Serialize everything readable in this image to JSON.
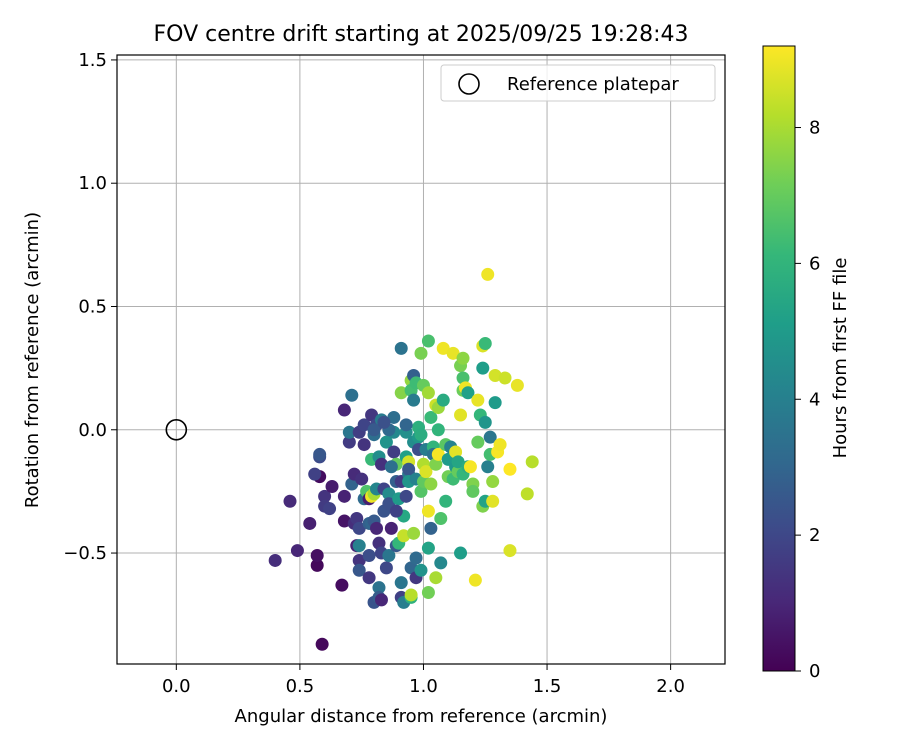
{
  "chart_data": {
    "type": "scatter",
    "title": "FOV centre drift starting at 2025/09/25 19:28:43",
    "xlabel": "Angular distance from reference (arcmin)",
    "ylabel": "Rotation from reference (arcmin)",
    "xlim": [
      -0.24,
      2.22
    ],
    "ylim": [
      -0.95,
      1.52
    ],
    "xticks": [
      0.0,
      0.5,
      1.0,
      1.5,
      2.0
    ],
    "xtick_labels": [
      "0.0",
      "0.5",
      "1.0",
      "1.5",
      "2.0"
    ],
    "yticks": [
      -0.5,
      0.0,
      0.5,
      1.0,
      1.5
    ],
    "ytick_labels": [
      "−0.5",
      "0.0",
      "0.5",
      "1.0",
      "1.5"
    ],
    "grid": true,
    "legend": {
      "position": "top-right",
      "entries": [
        "Reference platepar"
      ]
    },
    "reference_point": {
      "label": "Reference platepar",
      "x": 0.0,
      "y": 0.0
    },
    "colorbar": {
      "label": "Hours from first FF file",
      "range": [
        0,
        9.2
      ],
      "ticks": [
        0,
        2,
        4,
        6,
        8
      ],
      "tick_labels": [
        "0",
        "2",
        "4",
        "6",
        "8"
      ],
      "colormap_stops": [
        "#440154",
        "#482878",
        "#3e4989",
        "#31688e",
        "#26828e",
        "#1f9e89",
        "#35b779",
        "#6ece58",
        "#b5de2b",
        "#fde725"
      ]
    },
    "points": [
      {
        "x": 0.59,
        "y": -0.87,
        "h": 0.2
      },
      {
        "x": 0.67,
        "y": -0.63,
        "h": 0.3
      },
      {
        "x": 0.57,
        "y": -0.55,
        "h": 0.2
      },
      {
        "x": 0.57,
        "y": -0.51,
        "h": 0.4
      },
      {
        "x": 0.4,
        "y": -0.53,
        "h": 1.2
      },
      {
        "x": 0.49,
        "y": -0.49,
        "h": 1.0
      },
      {
        "x": 0.54,
        "y": -0.38,
        "h": 0.8
      },
      {
        "x": 0.46,
        "y": -0.29,
        "h": 1.1
      },
      {
        "x": 0.58,
        "y": -0.19,
        "h": 0.3
      },
      {
        "x": 0.56,
        "y": -0.18,
        "h": 1.8
      },
      {
        "x": 0.58,
        "y": -0.11,
        "h": 2.1
      },
      {
        "x": 0.58,
        "y": -0.1,
        "h": 2.5
      },
      {
        "x": 0.6,
        "y": -0.27,
        "h": 1.4
      },
      {
        "x": 0.6,
        "y": -0.31,
        "h": 1.6
      },
      {
        "x": 0.62,
        "y": -0.32,
        "h": 1.8
      },
      {
        "x": 0.63,
        "y": -0.23,
        "h": 0.7
      },
      {
        "x": 0.68,
        "y": -0.27,
        "h": 0.9
      },
      {
        "x": 0.68,
        "y": -0.37,
        "h": 0.5
      },
      {
        "x": 0.68,
        "y": 0.08,
        "h": 1.0
      },
      {
        "x": 0.7,
        "y": -0.05,
        "h": 1.6
      },
      {
        "x": 0.7,
        "y": -0.01,
        "h": 3.6
      },
      {
        "x": 0.71,
        "y": 0.14,
        "h": 3.4
      },
      {
        "x": 0.71,
        "y": -0.22,
        "h": 2.9
      },
      {
        "x": 0.72,
        "y": -0.38,
        "h": 1.2
      },
      {
        "x": 0.72,
        "y": -0.18,
        "h": 1.1
      },
      {
        "x": 0.73,
        "y": -0.36,
        "h": 1.5
      },
      {
        "x": 0.73,
        "y": -0.47,
        "h": 0.9
      },
      {
        "x": 0.74,
        "y": -0.4,
        "h": 2.0
      },
      {
        "x": 0.74,
        "y": -0.53,
        "h": 1.4
      },
      {
        "x": 0.74,
        "y": -0.57,
        "h": 2.5
      },
      {
        "x": 0.74,
        "y": -0.47,
        "h": 4.0
      },
      {
        "x": 0.74,
        "y": -0.01,
        "h": 1.7
      },
      {
        "x": 0.75,
        "y": -0.2,
        "h": 1.3
      },
      {
        "x": 0.76,
        "y": 0.02,
        "h": 1.9
      },
      {
        "x": 0.76,
        "y": -0.06,
        "h": 1.4
      },
      {
        "x": 0.76,
        "y": -0.28,
        "h": 3.2
      },
      {
        "x": 0.77,
        "y": -0.25,
        "h": 6.6
      },
      {
        "x": 0.78,
        "y": -0.6,
        "h": 1.5
      },
      {
        "x": 0.78,
        "y": -0.38,
        "h": 2.8
      },
      {
        "x": 0.78,
        "y": -0.28,
        "h": 0.8
      },
      {
        "x": 0.78,
        "y": -0.51,
        "h": 2.2
      },
      {
        "x": 0.79,
        "y": 0.06,
        "h": 1.5
      },
      {
        "x": 0.79,
        "y": -0.12,
        "h": 6.2
      },
      {
        "x": 0.79,
        "y": -0.27,
        "h": 9.0
      },
      {
        "x": 0.79,
        "y": -0.38,
        "h": 3.0
      },
      {
        "x": 0.8,
        "y": -0.7,
        "h": 2.4
      },
      {
        "x": 0.8,
        "y": -0.26,
        "h": 8.0
      },
      {
        "x": 0.8,
        "y": -0.37,
        "h": 2.6
      },
      {
        "x": 0.8,
        "y": -0.02,
        "h": 3.3
      },
      {
        "x": 0.81,
        "y": 0.02,
        "h": 2.0
      },
      {
        "x": 0.81,
        "y": -0.4,
        "h": 1.0
      },
      {
        "x": 0.81,
        "y": -0.24,
        "h": 4.2
      },
      {
        "x": 0.82,
        "y": -0.46,
        "h": 1.3
      },
      {
        "x": 0.82,
        "y": -0.64,
        "h": 3.5
      },
      {
        "x": 0.82,
        "y": -0.68,
        "h": 2.7
      },
      {
        "x": 0.82,
        "y": -0.11,
        "h": 4.5
      },
      {
        "x": 0.83,
        "y": -0.69,
        "h": 1.0
      },
      {
        "x": 0.83,
        "y": -0.5,
        "h": 1.9
      },
      {
        "x": 0.83,
        "y": 0.04,
        "h": 3.8
      },
      {
        "x": 0.83,
        "y": -0.14,
        "h": 1.3
      },
      {
        "x": 0.84,
        "y": -0.24,
        "h": 1.9
      },
      {
        "x": 0.84,
        "y": -0.33,
        "h": 2.4
      },
      {
        "x": 0.85,
        "y": -0.56,
        "h": 2.0
      },
      {
        "x": 0.85,
        "y": -0.05,
        "h": 4.7
      },
      {
        "x": 0.86,
        "y": -0.51,
        "h": 3.6
      },
      {
        "x": 0.86,
        "y": -0.26,
        "h": 4.4
      },
      {
        "x": 0.86,
        "y": -0.3,
        "h": 2.3
      },
      {
        "x": 0.87,
        "y": -0.4,
        "h": 0.9
      },
      {
        "x": 0.88,
        "y": -0.09,
        "h": 1.7
      },
      {
        "x": 0.88,
        "y": -0.01,
        "h": 4.3
      },
      {
        "x": 0.88,
        "y": 0.05,
        "h": 3.3
      },
      {
        "x": 0.89,
        "y": -0.47,
        "h": 2.5
      },
      {
        "x": 0.89,
        "y": -0.14,
        "h": 7.0
      },
      {
        "x": 0.89,
        "y": -0.21,
        "h": 2.8
      },
      {
        "x": 0.9,
        "y": -0.46,
        "h": 6.1
      },
      {
        "x": 0.9,
        "y": -0.28,
        "h": 5.0
      },
      {
        "x": 0.91,
        "y": 0.15,
        "h": 7.5
      },
      {
        "x": 0.91,
        "y": 0.33,
        "h": 3.5
      },
      {
        "x": 0.91,
        "y": -0.21,
        "h": 1.6
      },
      {
        "x": 0.91,
        "y": -0.68,
        "h": 1.8
      },
      {
        "x": 0.91,
        "y": -0.62,
        "h": 3.6
      },
      {
        "x": 0.92,
        "y": -0.7,
        "h": 3.9
      },
      {
        "x": 0.92,
        "y": -0.35,
        "h": 5.5
      },
      {
        "x": 0.92,
        "y": -0.43,
        "h": 8.4
      },
      {
        "x": 0.93,
        "y": -0.27,
        "h": 2.0
      },
      {
        "x": 0.93,
        "y": -0.01,
        "h": 4.6
      },
      {
        "x": 0.93,
        "y": -0.11,
        "h": 5.2
      },
      {
        "x": 0.94,
        "y": -0.13,
        "h": 8.6
      },
      {
        "x": 0.94,
        "y": -0.18,
        "h": 3.7
      },
      {
        "x": 0.94,
        "y": -0.16,
        "h": 2.5
      },
      {
        "x": 0.94,
        "y": -0.21,
        "h": 4.8
      },
      {
        "x": 0.95,
        "y": 0.2,
        "h": 7.7
      },
      {
        "x": 0.95,
        "y": 0.16,
        "h": 6.4
      },
      {
        "x": 0.95,
        "y": -0.56,
        "h": 3.0
      },
      {
        "x": 0.95,
        "y": -0.68,
        "h": 5.9
      },
      {
        "x": 0.95,
        "y": -0.67,
        "h": 8.2
      },
      {
        "x": 0.96,
        "y": -0.05,
        "h": 4.5
      },
      {
        "x": 0.96,
        "y": 0.22,
        "h": 2.8
      },
      {
        "x": 0.96,
        "y": 0.12,
        "h": 3.8
      },
      {
        "x": 0.96,
        "y": -0.42,
        "h": 7.8
      },
      {
        "x": 0.97,
        "y": -0.2,
        "h": 4.1
      },
      {
        "x": 0.97,
        "y": -0.6,
        "h": 1.5
      },
      {
        "x": 0.97,
        "y": -0.52,
        "h": 3.2
      },
      {
        "x": 0.97,
        "y": 0.19,
        "h": 6.3
      },
      {
        "x": 0.98,
        "y": -0.03,
        "h": 4.9
      },
      {
        "x": 0.98,
        "y": -0.08,
        "h": 2.2
      },
      {
        "x": 0.98,
        "y": 0.01,
        "h": 5.8
      },
      {
        "x": 0.99,
        "y": -0.57,
        "h": 4.7
      },
      {
        "x": 0.99,
        "y": 0.31,
        "h": 7.3
      },
      {
        "x": 0.99,
        "y": -0.25,
        "h": 6.7
      },
      {
        "x": 1.0,
        "y": 0.18,
        "h": 7.0
      },
      {
        "x": 1.0,
        "y": -0.21,
        "h": 6.9
      },
      {
        "x": 1.0,
        "y": -0.14,
        "h": 8.1
      },
      {
        "x": 1.01,
        "y": -0.17,
        "h": 8.7
      },
      {
        "x": 1.01,
        "y": -0.08,
        "h": 3.9
      },
      {
        "x": 1.02,
        "y": -0.66,
        "h": 7.2
      },
      {
        "x": 1.02,
        "y": -0.33,
        "h": 9.0
      },
      {
        "x": 1.02,
        "y": 0.15,
        "h": 7.9
      },
      {
        "x": 1.02,
        "y": 0.36,
        "h": 6.5
      },
      {
        "x": 1.02,
        "y": -0.48,
        "h": 5.3
      },
      {
        "x": 1.03,
        "y": -0.4,
        "h": 2.9
      },
      {
        "x": 1.03,
        "y": -0.22,
        "h": 7.6
      },
      {
        "x": 1.03,
        "y": 0.05,
        "h": 6.2
      },
      {
        "x": 1.04,
        "y": -0.07,
        "h": 6.0
      },
      {
        "x": 1.04,
        "y": -0.1,
        "h": 3.5
      },
      {
        "x": 1.05,
        "y": 0.1,
        "h": 8.5
      },
      {
        "x": 1.05,
        "y": -0.14,
        "h": 7.4
      },
      {
        "x": 1.05,
        "y": -0.6,
        "h": 8.0
      },
      {
        "x": 1.06,
        "y": -0.1,
        "h": 9.1
      },
      {
        "x": 1.06,
        "y": 0.09,
        "h": 7.8
      },
      {
        "x": 1.07,
        "y": -0.36,
        "h": 6.6
      },
      {
        "x": 1.07,
        "y": -0.54,
        "h": 4.3
      },
      {
        "x": 1.08,
        "y": 0.33,
        "h": 9.0
      },
      {
        "x": 1.08,
        "y": 0.12,
        "h": 5.6
      },
      {
        "x": 1.09,
        "y": -0.06,
        "h": 6.8
      },
      {
        "x": 1.1,
        "y": -0.19,
        "h": 7.2
      },
      {
        "x": 1.1,
        "y": -0.12,
        "h": 5.0
      },
      {
        "x": 1.11,
        "y": -0.07,
        "h": 4.1
      },
      {
        "x": 1.12,
        "y": -0.2,
        "h": 6.3
      },
      {
        "x": 1.12,
        "y": 0.31,
        "h": 8.9
      },
      {
        "x": 1.13,
        "y": -0.09,
        "h": 8.8
      },
      {
        "x": 1.13,
        "y": -0.15,
        "h": 4.9
      },
      {
        "x": 1.14,
        "y": -0.17,
        "h": 7.0
      },
      {
        "x": 1.14,
        "y": -0.13,
        "h": 5.4
      },
      {
        "x": 1.15,
        "y": 0.06,
        "h": 8.8
      },
      {
        "x": 1.15,
        "y": -0.5,
        "h": 5.1
      },
      {
        "x": 1.15,
        "y": 0.26,
        "h": 7.3
      },
      {
        "x": 1.16,
        "y": -0.18,
        "h": 6.1
      },
      {
        "x": 1.16,
        "y": 0.16,
        "h": 7.1
      },
      {
        "x": 1.16,
        "y": 0.29,
        "h": 7.6
      },
      {
        "x": 1.16,
        "y": 0.21,
        "h": 6.5
      },
      {
        "x": 1.17,
        "y": 0.17,
        "h": 9.0
      },
      {
        "x": 1.18,
        "y": -0.15,
        "h": 5.7
      },
      {
        "x": 1.18,
        "y": 0.15,
        "h": 5.2
      },
      {
        "x": 1.19,
        "y": -0.15,
        "h": 9.1
      },
      {
        "x": 1.2,
        "y": -0.22,
        "h": 7.4
      },
      {
        "x": 1.21,
        "y": -0.61,
        "h": 9.0
      },
      {
        "x": 1.22,
        "y": 0.12,
        "h": 8.9
      },
      {
        "x": 1.23,
        "y": 0.06,
        "h": 6.1
      },
      {
        "x": 1.24,
        "y": 0.25,
        "h": 5.1
      },
      {
        "x": 1.24,
        "y": -0.31,
        "h": 7.4
      },
      {
        "x": 1.24,
        "y": 0.34,
        "h": 8.7
      },
      {
        "x": 1.25,
        "y": 0.03,
        "h": 4.8
      },
      {
        "x": 1.25,
        "y": -0.29,
        "h": 5.3
      },
      {
        "x": 1.25,
        "y": 0.35,
        "h": 6.2
      },
      {
        "x": 1.26,
        "y": -0.15,
        "h": 4.0
      },
      {
        "x": 1.26,
        "y": 0.63,
        "h": 9.0
      },
      {
        "x": 1.27,
        "y": -0.1,
        "h": 6.4
      },
      {
        "x": 1.27,
        "y": -0.03,
        "h": 3.6
      },
      {
        "x": 1.28,
        "y": -0.21,
        "h": 7.7
      },
      {
        "x": 1.28,
        "y": -0.29,
        "h": 8.8
      },
      {
        "x": 1.29,
        "y": 0.22,
        "h": 8.6
      },
      {
        "x": 1.29,
        "y": 0.11,
        "h": 5.0
      },
      {
        "x": 1.3,
        "y": -0.09,
        "h": 9.1
      },
      {
        "x": 1.31,
        "y": -0.06,
        "h": 9.0
      },
      {
        "x": 1.33,
        "y": 0.21,
        "h": 8.5
      },
      {
        "x": 1.35,
        "y": -0.16,
        "h": 9.2
      },
      {
        "x": 1.35,
        "y": -0.49,
        "h": 8.7
      },
      {
        "x": 1.38,
        "y": 0.18,
        "h": 8.9
      },
      {
        "x": 1.42,
        "y": -0.26,
        "h": 8.3
      },
      {
        "x": 1.44,
        "y": -0.13,
        "h": 8.2
      },
      {
        "x": 1.22,
        "y": -0.05,
        "h": 7.0
      },
      {
        "x": 1.2,
        "y": -0.25,
        "h": 6.9
      },
      {
        "x": 0.86,
        "y": 0.0,
        "h": 3.1
      },
      {
        "x": 0.87,
        "y": -0.15,
        "h": 3.4
      },
      {
        "x": 0.93,
        "y": 0.02,
        "h": 3.0
      },
      {
        "x": 0.99,
        "y": -0.02,
        "h": 5.7
      },
      {
        "x": 1.06,
        "y": 0.0,
        "h": 6.0
      },
      {
        "x": 0.8,
        "y": 0.0,
        "h": 2.6
      },
      {
        "x": 0.84,
        "y": 0.03,
        "h": 2.3
      },
      {
        "x": 1.09,
        "y": -0.29,
        "h": 6.0
      },
      {
        "x": 0.89,
        "y": -0.33,
        "h": 1.8
      }
    ]
  }
}
